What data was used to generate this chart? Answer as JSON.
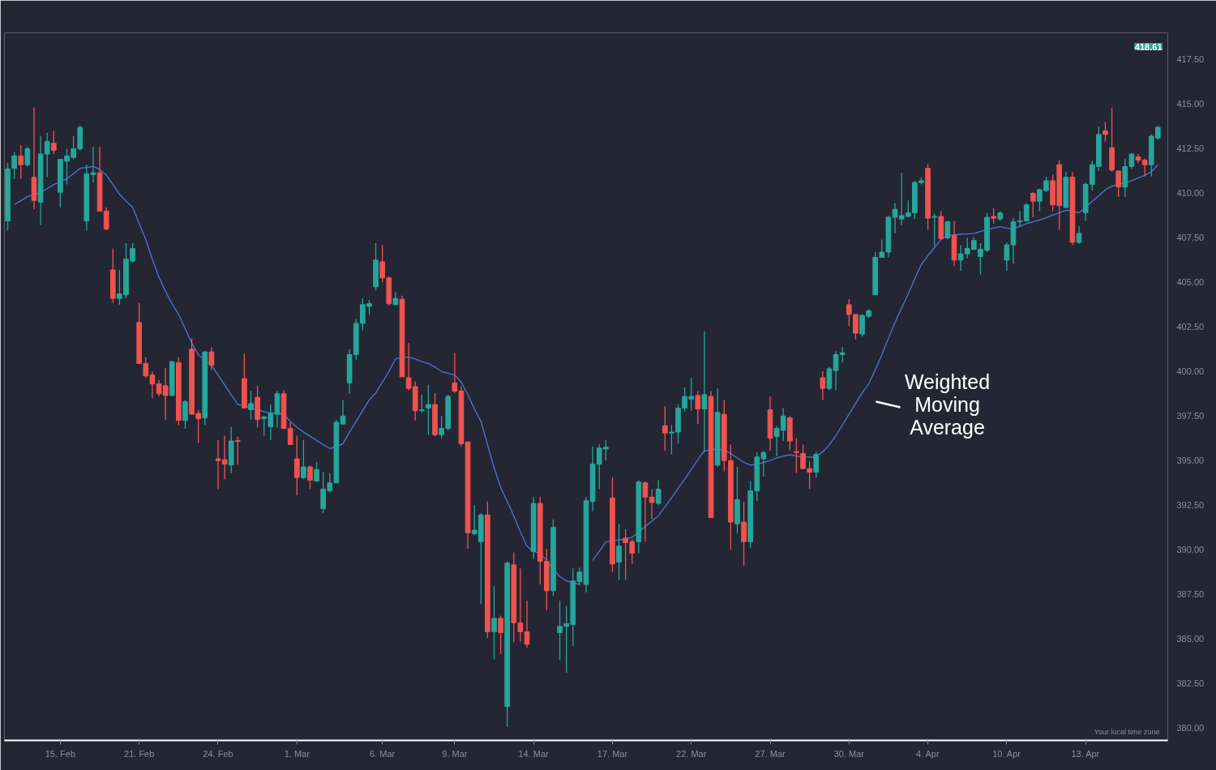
{
  "chart_data": {
    "type": "candlestick",
    "categories": [
      null,
      null,
      null,
      null,
      null,
      null,
      null,
      null,
      "15. Feb",
      null,
      null,
      null,
      null,
      null,
      null,
      null,
      null,
      null,
      null,
      null,
      "21. Feb",
      null,
      null,
      null,
      null,
      null,
      null,
      null,
      null,
      null,
      null,
      null,
      "24. Feb",
      null,
      null,
      null,
      null,
      null,
      null,
      null,
      null,
      null,
      null,
      null,
      "1. Mar",
      null,
      null,
      null,
      null,
      null,
      null,
      null,
      null,
      null,
      null,
      null,
      null,
      "6. Mar",
      null,
      null,
      null,
      null,
      null,
      null,
      null,
      null,
      null,
      null,
      "9. Mar",
      null,
      null,
      null,
      null,
      null,
      null,
      null,
      null,
      null,
      null,
      null,
      "14. Mar",
      null,
      null,
      null,
      null,
      null,
      null,
      null,
      null,
      null,
      null,
      null,
      "17. Mar",
      null,
      null,
      null,
      null,
      null,
      null,
      null,
      null,
      null,
      null,
      null,
      "22. Mar",
      null,
      null,
      null,
      null,
      null,
      null,
      null,
      null,
      null,
      null,
      null,
      "27. Mar",
      null,
      null,
      null,
      null,
      null,
      null,
      null,
      null,
      null,
      null,
      null,
      "30. Mar",
      null,
      null,
      null,
      null,
      null,
      null,
      null,
      null,
      null,
      null,
      null,
      "4. Apr",
      null,
      null,
      null,
      null,
      null,
      null,
      null,
      null,
      null,
      null,
      null,
      "10. Apr",
      null,
      null,
      null,
      null,
      null,
      null,
      null,
      null,
      null,
      null,
      null,
      "13. Apr",
      null,
      null,
      null,
      null,
      null,
      null,
      null,
      null,
      null,
      null,
      null
    ],
    "ohlc": [
      [
        408.45,
        411.7,
        407.9,
        411.36
      ],
      [
        411.4,
        412.3,
        410.8,
        412.1
      ],
      [
        412.1,
        412.7,
        410.8,
        411.6
      ],
      [
        411.6,
        412.6,
        411.5,
        412.5
      ],
      [
        410.9,
        414.8,
        409.1,
        409.6
      ],
      [
        409.5,
        413.2,
        408.2,
        412.2
      ],
      [
        412.2,
        413.4,
        410.9,
        412.9
      ],
      [
        412.8,
        413.5,
        412.2,
        412.4
      ],
      [
        410.05,
        411.9,
        409.2,
        411.9
      ],
      [
        411.8,
        412.5,
        410.5,
        412.1
      ],
      [
        412.0,
        413.2,
        411.9,
        412.5
      ],
      [
        412.5,
        413.8,
        412.4,
        413.7
      ],
      [
        408.45,
        411.6,
        407.9,
        411.1
      ],
      [
        411.05,
        412.6,
        410.6,
        411.15
      ],
      [
        411.15,
        412.6,
        409.0,
        409.0
      ],
      [
        409.0,
        409.2,
        407.9,
        408.0
      ],
      [
        405.7,
        406.9,
        403.85,
        404.1
      ],
      [
        404.1,
        405.7,
        403.75,
        404.35
      ],
      [
        404.3,
        407.2,
        404.1,
        406.3
      ],
      [
        406.2,
        407.2,
        406.1,
        406.9
      ],
      [
        402.75,
        403.85,
        400.45,
        400.45
      ],
      [
        400.45,
        400.8,
        399.65,
        399.75
      ],
      [
        399.8,
        400.0,
        398.5,
        399.3
      ],
      [
        399.3,
        399.5,
        398.6,
        398.75
      ],
      [
        399.2,
        400.2,
        397.3,
        398.65
      ],
      [
        398.65,
        400.6,
        398.6,
        400.55
      ],
      [
        400.5,
        400.8,
        397.0,
        397.25
      ],
      [
        397.25,
        398.4,
        396.8,
        398.3
      ],
      [
        401.25,
        401.85,
        397.6,
        397.6
      ],
      [
        397.65,
        397.85,
        396.0,
        397.35
      ],
      [
        397.4,
        401.15,
        397.0,
        401.1
      ],
      [
        401.1,
        401.35,
        400.1,
        400.35
      ],
      [
        395.1,
        396.15,
        393.4,
        395.0
      ],
      [
        395.05,
        396.4,
        393.95,
        394.8
      ],
      [
        394.75,
        396.9,
        394.3,
        396.1
      ],
      [
        396.12,
        396.35,
        394.75,
        396.08
      ],
      [
        399.6,
        401.0,
        397.95,
        397.95
      ],
      [
        397.85,
        398.9,
        397.3,
        398.2
      ],
      [
        398.55,
        399.2,
        396.85,
        397.3
      ],
      [
        397.35,
        397.5,
        396.4,
        397.45
      ],
      [
        396.9,
        398.15,
        396.15,
        397.65
      ],
      [
        397.6,
        398.9,
        396.85,
        398.75
      ],
      [
        398.75,
        398.95,
        396.8,
        396.8
      ],
      [
        396.8,
        397.15,
        395.9,
        395.9
      ],
      [
        395.1,
        396.4,
        393.05,
        394.05
      ],
      [
        394.05,
        396.15,
        393.95,
        394.65
      ],
      [
        394.65,
        394.7,
        393.4,
        393.9
      ],
      [
        393.85,
        394.9,
        393.8,
        394.5
      ],
      [
        392.3,
        394.35,
        392.05,
        393.4
      ],
      [
        393.3,
        394.3,
        393.2,
        393.75
      ],
      [
        393.75,
        397.3,
        393.75,
        397.15
      ],
      [
        397.05,
        398.4,
        397.0,
        397.5
      ],
      [
        399.35,
        401.25,
        398.75,
        400.95
      ],
      [
        400.95,
        402.95,
        400.65,
        402.7
      ],
      [
        402.7,
        404.1,
        402.3,
        403.75
      ],
      [
        403.65,
        404.0,
        403.2,
        403.8
      ],
      [
        404.75,
        407.2,
        404.55,
        406.25
      ],
      [
        406.15,
        407.1,
        405.0,
        405.25
      ],
      [
        405.25,
        405.35,
        403.7,
        403.8
      ],
      [
        403.75,
        404.45,
        403.7,
        404.1
      ],
      [
        404.05,
        404.25,
        399.7,
        399.7
      ],
      [
        399.65,
        401.6,
        398.95,
        399.05
      ],
      [
        399.15,
        399.45,
        397.25,
        397.8
      ],
      [
        397.8,
        398.7,
        397.7,
        397.85
      ],
      [
        397.95,
        399.25,
        396.45,
        398.15
      ],
      [
        398.15,
        398.8,
        396.35,
        396.45
      ],
      [
        396.45,
        397.5,
        396.25,
        396.8
      ],
      [
        396.8,
        398.7,
        396.7,
        398.6
      ],
      [
        399.35,
        401.05,
        398.8,
        398.9
      ],
      [
        398.9,
        399.15,
        395.8,
        395.95
      ],
      [
        396.05,
        396.05,
        390.05,
        390.95
      ],
      [
        390.9,
        392.5,
        390.8,
        391.1
      ],
      [
        390.45,
        392.05,
        386.95,
        391.95
      ],
      [
        391.95,
        392.7,
        385.05,
        385.4
      ],
      [
        385.4,
        387.95,
        383.85,
        386.15
      ],
      [
        386.15,
        386.3,
        384.15,
        385.35
      ],
      [
        381.2,
        389.35,
        380.05,
        389.25
      ],
      [
        389.15,
        389.85,
        384.8,
        385.9
      ],
      [
        385.9,
        388.95,
        384.85,
        385.4
      ],
      [
        385.4,
        387.15,
        384.5,
        384.7
      ],
      [
        389.9,
        392.95,
        389.5,
        392.6
      ],
      [
        392.6,
        392.95,
        388.05,
        389.35
      ],
      [
        389.35,
        390.05,
        386.6,
        387.7
      ],
      [
        387.7,
        391.7,
        387.4,
        391.25
      ],
      [
        385.35,
        387.15,
        383.8,
        385.7
      ],
      [
        385.7,
        386.85,
        383.1,
        385.85
      ],
      [
        385.8,
        388.95,
        384.6,
        388.25
      ],
      [
        388.2,
        389.0,
        388.0,
        388.75
      ],
      [
        388.05,
        392.95,
        387.6,
        392.75
      ],
      [
        392.7,
        395.8,
        392.15,
        394.8
      ],
      [
        394.8,
        395.9,
        393.4,
        395.7
      ],
      [
        395.65,
        396.15,
        395.0,
        395.75
      ],
      [
        392.9,
        394.05,
        388.75,
        389.2
      ],
      [
        389.3,
        391.45,
        388.3,
        390.2
      ],
      [
        390.65,
        391.15,
        388.3,
        390.4
      ],
      [
        390.45,
        390.6,
        389.2,
        389.8
      ],
      [
        390.45,
        393.9,
        389.8,
        393.8
      ],
      [
        393.75,
        393.85,
        390.45,
        392.95
      ],
      [
        392.95,
        393.4,
        391.7,
        392.65
      ],
      [
        392.6,
        393.9,
        392.5,
        393.4
      ],
      [
        396.95,
        398.05,
        395.55,
        396.55
      ],
      [
        396.55,
        397.0,
        395.35,
        396.6
      ],
      [
        396.6,
        398.15,
        395.95,
        397.95
      ],
      [
        397.95,
        399.1,
        397.75,
        398.6
      ],
      [
        398.45,
        399.65,
        397.8,
        398.6
      ],
      [
        398.65,
        398.9,
        397.05,
        397.9
      ],
      [
        397.9,
        402.25,
        395.45,
        398.7
      ],
      [
        398.6,
        398.9,
        391.8,
        391.8
      ],
      [
        394.75,
        399.05,
        394.65,
        397.7
      ],
      [
        397.6,
        398.4,
        394.4,
        395.0
      ],
      [
        395.0,
        395.9,
        390.0,
        391.55
      ],
      [
        391.45,
        394.65,
        390.9,
        392.8
      ],
      [
        391.55,
        392.7,
        389.1,
        390.45
      ],
      [
        390.45,
        393.85,
        390.1,
        393.3
      ],
      [
        393.3,
        395.45,
        392.75,
        395.2
      ],
      [
        395.1,
        395.55,
        394.1,
        395.45
      ],
      [
        397.85,
        398.6,
        395.55,
        396.25
      ],
      [
        396.35,
        396.95,
        395.25,
        396.8
      ],
      [
        396.7,
        397.95,
        396.1,
        397.5
      ],
      [
        397.4,
        397.5,
        395.55,
        396.1
      ],
      [
        395.5,
        396.25,
        394.3,
        395.45
      ],
      [
        395.4,
        395.9,
        394.55,
        394.55
      ],
      [
        394.55,
        394.95,
        393.4,
        394.35
      ],
      [
        394.35,
        395.5,
        394.05,
        395.35
      ],
      [
        399.65,
        400.0,
        398.4,
        399.05
      ],
      [
        399.05,
        400.25,
        398.95,
        400.15
      ],
      [
        400.05,
        401.15,
        398.95,
        400.95
      ],
      [
        400.95,
        401.35,
        400.5,
        401.05
      ],
      [
        403.75,
        404.05,
        402.55,
        403.2
      ],
      [
        403.2,
        403.2,
        401.8,
        402.15
      ],
      [
        402.1,
        403.2,
        401.95,
        403.15
      ],
      [
        403.1,
        403.5,
        403.0,
        403.4
      ],
      [
        404.3,
        406.7,
        404.3,
        406.4
      ],
      [
        406.4,
        407.4,
        406.4,
        406.7
      ],
      [
        406.7,
        408.75,
        406.4,
        408.65
      ],
      [
        408.65,
        409.45,
        407.75,
        409.1
      ],
      [
        408.55,
        411.15,
        408.2,
        408.75
      ],
      [
        408.7,
        409.6,
        408.65,
        408.9
      ],
      [
        408.9,
        410.7,
        408.55,
        410.6
      ],
      [
        410.6,
        410.9,
        410.5,
        410.7
      ],
      [
        411.4,
        411.65,
        407.95,
        408.6
      ],
      [
        408.65,
        408.85,
        407.05,
        408.7
      ],
      [
        408.7,
        409.0,
        407.4,
        407.45
      ],
      [
        407.5,
        408.45,
        407.4,
        408.4
      ],
      [
        407.65,
        408.45,
        405.9,
        406.25
      ],
      [
        406.25,
        407.1,
        405.65,
        406.6
      ],
      [
        406.6,
        407.5,
        406.35,
        406.9
      ],
      [
        406.85,
        407.55,
        406.8,
        407.35
      ],
      [
        406.45,
        407.2,
        405.45,
        406.85
      ],
      [
        406.8,
        408.9,
        406.7,
        408.65
      ],
      [
        408.7,
        409.15,
        408.3,
        408.6
      ],
      [
        408.55,
        409.0,
        408.45,
        408.9
      ],
      [
        406.25,
        407.25,
        405.65,
        407.1
      ],
      [
        407.1,
        408.6,
        406.05,
        408.4
      ],
      [
        408.4,
        409.0,
        408.1,
        408.45
      ],
      [
        408.45,
        409.45,
        408.4,
        409.35
      ],
      [
        410.0,
        410.05,
        408.65,
        409.55
      ],
      [
        409.55,
        410.25,
        409.0,
        410.2
      ],
      [
        410.15,
        410.9,
        410.05,
        410.7
      ],
      [
        410.7,
        411.05,
        409.0,
        409.35
      ],
      [
        411.6,
        411.85,
        407.95,
        409.3
      ],
      [
        409.2,
        411.2,
        409.15,
        410.9
      ],
      [
        410.9,
        411.2,
        407.1,
        407.25
      ],
      [
        407.25,
        408.15,
        407.15,
        407.75
      ],
      [
        408.9,
        410.6,
        408.45,
        410.5
      ],
      [
        410.5,
        411.8,
        410.15,
        411.6
      ],
      [
        411.5,
        413.75,
        411.25,
        413.3
      ],
      [
        413.5,
        414.0,
        412.9,
        413.3
      ],
      [
        412.55,
        414.8,
        411.2,
        411.3
      ],
      [
        411.25,
        411.25,
        409.8,
        410.35
      ],
      [
        410.35,
        411.95,
        409.8,
        411.5
      ],
      [
        411.5,
        412.25,
        411.35,
        412.2
      ],
      [
        412.05,
        412.2,
        411.7,
        411.85
      ],
      [
        411.85,
        411.95,
        410.95,
        411.6
      ],
      [
        411.6,
        413.3,
        410.95,
        413.2
      ],
      [
        413.1,
        413.8,
        413.0,
        413.7
      ]
    ],
    "colors": [
      "#26a69a",
      "#26a69a",
      "#ef5350",
      "#26a69a",
      "#ef5350",
      "#26a69a",
      "#26a69a",
      "#ef5350",
      "#26a69a",
      "#26a69a",
      "#26a69a",
      "#26a69a",
      "#26a69a",
      "#26a69a",
      "#ef5350",
      "#ef5350",
      "#ef5350",
      "#26a69a",
      "#26a69a",
      "#26a69a",
      "#ef5350",
      "#ef5350",
      "#ef5350",
      "#ef5350",
      "#ef5350",
      "#26a69a",
      "#ef5350",
      "#26a69a",
      "#ef5350",
      "#ef5350",
      "#26a69a",
      "#ef5350",
      "#ef5350",
      "#ef5350",
      "#26a69a",
      "#ef5350",
      "#ef5350",
      "#26a69a",
      "#ef5350",
      "#26a69a",
      "#26a69a",
      "#26a69a",
      "#ef5350",
      "#ef5350",
      "#ef5350",
      "#26a69a",
      "#ef5350",
      "#26a69a",
      "#26a69a",
      "#26a69a",
      "#26a69a",
      "#26a69a",
      "#26a69a",
      "#26a69a",
      "#26a69a",
      "#26a69a",
      "#26a69a",
      "#ef5350",
      "#ef5350",
      "#26a69a",
      "#ef5350",
      "#ef5350",
      "#ef5350",
      "#26a69a",
      "#26a69a",
      "#ef5350",
      "#26a69a",
      "#26a69a",
      "#ef5350",
      "#ef5350",
      "#ef5350",
      "#26a69a",
      "#26a69a",
      "#ef5350",
      "#26a69a",
      "#ef5350",
      "#26a69a",
      "#ef5350",
      "#ef5350",
      "#ef5350",
      "#26a69a",
      "#ef5350",
      "#ef5350",
      "#26a69a",
      "#26a69a",
      "#26a69a",
      "#26a69a",
      "#26a69a",
      "#26a69a",
      "#26a69a",
      "#26a69a",
      "#26a69a",
      "#ef5350",
      "#26a69a",
      "#ef5350",
      "#ef5350",
      "#26a69a",
      "#ef5350",
      "#ef5350",
      "#26a69a",
      "#ef5350",
      "#26a69a",
      "#26a69a",
      "#26a69a",
      "#26a69a",
      "#ef5350",
      "#26a69a",
      "#ef5350",
      "#26a69a",
      "#ef5350",
      "#ef5350",
      "#26a69a",
      "#ef5350",
      "#26a69a",
      "#26a69a",
      "#26a69a",
      "#ef5350",
      "#26a69a",
      "#26a69a",
      "#ef5350",
      "#ef5350",
      "#ef5350",
      "#ef5350",
      "#26a69a",
      "#ef5350",
      "#26a69a",
      "#26a69a",
      "#26a69a",
      "#ef5350",
      "#ef5350",
      "#26a69a",
      "#26a69a",
      "#26a69a",
      "#26a69a",
      "#26a69a",
      "#26a69a",
      "#26a69a",
      "#26a69a",
      "#26a69a",
      "#26a69a",
      "#ef5350",
      "#26a69a",
      "#ef5350",
      "#26a69a",
      "#ef5350",
      "#26a69a",
      "#26a69a",
      "#26a69a",
      "#26a69a",
      "#26a69a",
      "#ef5350",
      "#26a69a",
      "#26a69a",
      "#26a69a",
      "#26a69a",
      "#26a69a",
      "#ef5350",
      "#26a69a",
      "#26a69a",
      "#ef5350",
      "#ef5350",
      "#26a69a",
      "#ef5350",
      "#26a69a",
      "#26a69a",
      "#26a69a",
      "#26a69a",
      "#ef5350",
      "#ef5350",
      "#ef5350",
      "#26a69a",
      "#26a69a",
      "#ef5350",
      "#ef5350",
      "#26a69a",
      "#26a69a"
    ],
    "series": [
      {
        "type": "line",
        "color": "#4a78d0",
        "values": [
          null,
          409.36,
          409.58,
          409.81,
          409.92,
          410.04,
          410.26,
          410.49,
          410.65,
          410.81,
          411.1,
          411.4,
          411.45,
          411.5,
          411.34,
          411.02,
          410.49,
          409.95,
          409.56,
          409.22,
          408.3,
          407.4,
          406.3,
          405.3,
          404.5,
          403.8,
          403.2,
          402.4,
          401.6,
          400.94,
          400.64,
          400.34,
          399.8,
          399.25,
          398.7,
          398.16,
          398.05,
          397.95,
          397.85,
          397.75,
          397.68,
          397.65,
          397.61,
          397.2,
          396.88,
          396.6,
          396.37,
          396.13,
          395.9,
          395.68,
          395.77,
          395.95,
          396.6,
          397.2,
          397.8,
          398.4,
          398.8,
          399.4,
          400.0,
          400.7,
          400.8,
          400.8,
          400.7,
          400.55,
          400.45,
          400.25,
          400.0,
          399.9,
          399.8,
          399.4,
          398.7,
          397.9,
          397.2,
          395.9,
          394.6,
          393.5,
          392.7,
          391.9,
          391.0,
          390.2,
          389.9,
          389.8,
          389.4,
          388.9,
          388.5,
          388.25,
          388.15,
          388.05,
          null,
          389.4,
          389.9,
          390.45,
          390.5,
          390.55,
          390.6,
          390.7,
          391.0,
          391.3,
          391.6,
          391.9,
          392.4,
          392.9,
          393.45,
          393.95,
          394.5,
          395.05,
          395.55,
          395.6,
          395.65,
          395.6,
          395.4,
          395.15,
          394.9,
          394.75,
          394.78,
          394.9,
          395.0,
          395.15,
          395.25,
          395.33,
          395.26,
          395.2,
          395.2,
          395.2,
          395.5,
          395.88,
          396.4,
          397.0,
          397.6,
          398.2,
          398.8,
          399.3,
          400.1,
          400.95,
          401.85,
          402.75,
          403.55,
          404.35,
          405.2,
          406.0,
          406.5,
          406.95,
          407.4,
          407.65,
          407.66,
          407.7,
          407.72,
          407.75,
          407.85,
          407.95,
          408.05,
          408.13,
          408.05,
          408.0,
          408.15,
          408.3,
          408.4,
          408.5,
          408.63,
          408.77,
          408.9,
          409.05,
          409.0,
          408.9,
          409.2,
          409.55,
          409.85,
          410.2,
          410.4,
          410.5,
          410.58,
          410.7,
          410.85,
          411.0,
          411.2,
          411.6
        ]
      }
    ],
    "ylim": [
      379.3,
      419.0
    ],
    "yticks": [
      {
        "value": 380,
        "label": "380.00"
      },
      {
        "value": 382.5,
        "label": "382.50"
      },
      {
        "value": 385,
        "label": "385.00"
      },
      {
        "value": 387.5,
        "label": "387.50"
      },
      {
        "value": 390,
        "label": "390.00"
      },
      {
        "value": 392.5,
        "label": "392.50"
      },
      {
        "value": 395,
        "label": "395.00"
      },
      {
        "value": 397.5,
        "label": "397.50"
      },
      {
        "value": 400,
        "label": "400.00"
      },
      {
        "value": 402.5,
        "label": "402.50"
      },
      {
        "value": 405,
        "label": "405.00"
      },
      {
        "value": 407.5,
        "label": "407.50"
      },
      {
        "value": 410,
        "label": "410.00"
      },
      {
        "value": 412.5,
        "label": "412.50"
      },
      {
        "value": 415,
        "label": "415.00"
      },
      {
        "value": 417.5,
        "label": "417.50"
      }
    ],
    "annotations": [
      "Weighted Moving Average",
      "418.61",
      "Your local time zone"
    ]
  }
}
